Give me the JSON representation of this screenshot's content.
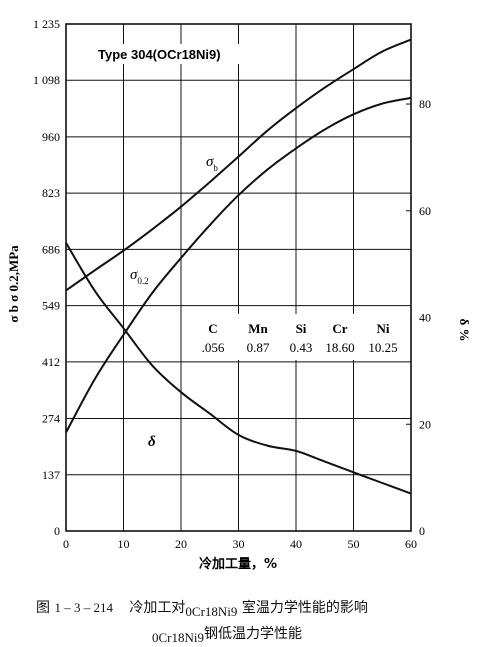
{
  "chart_data": {
    "type": "line",
    "title": "Type 304(OCr18Ni9)",
    "xlabel": "冷加工量，%",
    "ylabel": "σ b σ 0.2,MPa",
    "y2label": "δ %",
    "xlim": [
      0,
      60
    ],
    "ylim": [
      0,
      1235
    ],
    "y2lim": [
      0,
      95
    ],
    "x_ticks": [
      "0",
      "10",
      "20",
      "30",
      "40",
      "50",
      "60"
    ],
    "y_ticks": [
      "0",
      "137",
      "274",
      "412",
      "549",
      "686",
      "823",
      "960",
      "1 098",
      "1 235"
    ],
    "y2_ticks": [
      "0",
      "20",
      "40",
      "60",
      "80"
    ],
    "series": [
      {
        "name": "σ b",
        "axis": "left",
        "x": [
          0,
          5,
          10,
          15,
          20,
          25,
          30,
          35,
          40,
          45,
          50,
          55,
          60
        ],
        "values": [
          586,
          635,
          683,
          735,
          790,
          850,
          912,
          975,
          1030,
          1080,
          1125,
          1168,
          1197
        ]
      },
      {
        "name": "σ 0.2",
        "axis": "left",
        "x": [
          0,
          5,
          10,
          15,
          20,
          25,
          30,
          35,
          40,
          45,
          50,
          55,
          60
        ],
        "values": [
          240,
          370,
          478,
          580,
          665,
          745,
          818,
          880,
          932,
          978,
          1015,
          1041,
          1055
        ]
      },
      {
        "name": "δ",
        "axis": "right",
        "x": [
          0,
          5,
          10,
          15,
          20,
          25,
          30,
          35,
          40,
          45,
          50,
          55,
          60
        ],
        "values": [
          54,
          45,
          38,
          31,
          26,
          22,
          18,
          16,
          15,
          13,
          11,
          9,
          7
        ]
      }
    ],
    "series_labels": {
      "sb": {
        "main": "σ",
        "sub": "b"
      },
      "s02": {
        "main": "σ",
        "sub": "0.2"
      },
      "delta": {
        "main": "δ"
      }
    },
    "composition_table": {
      "headers": [
        "C",
        "Mn",
        "Si",
        "Cr",
        "Ni"
      ],
      "values": [
        ".056",
        "0.87",
        "0.43",
        "18.60",
        "10.25"
      ]
    },
    "grid": true
  },
  "caption": {
    "prefix": "图",
    "number": "1 – 3 – 214",
    "line1_a": "冷加工对",
    "line1_grade": "0Cr18Ni9",
    "line1_b": "室温力学性能的影响",
    "line2_grade": "0Cr18Ni9",
    "line2_b": "钢低温力学性能"
  }
}
